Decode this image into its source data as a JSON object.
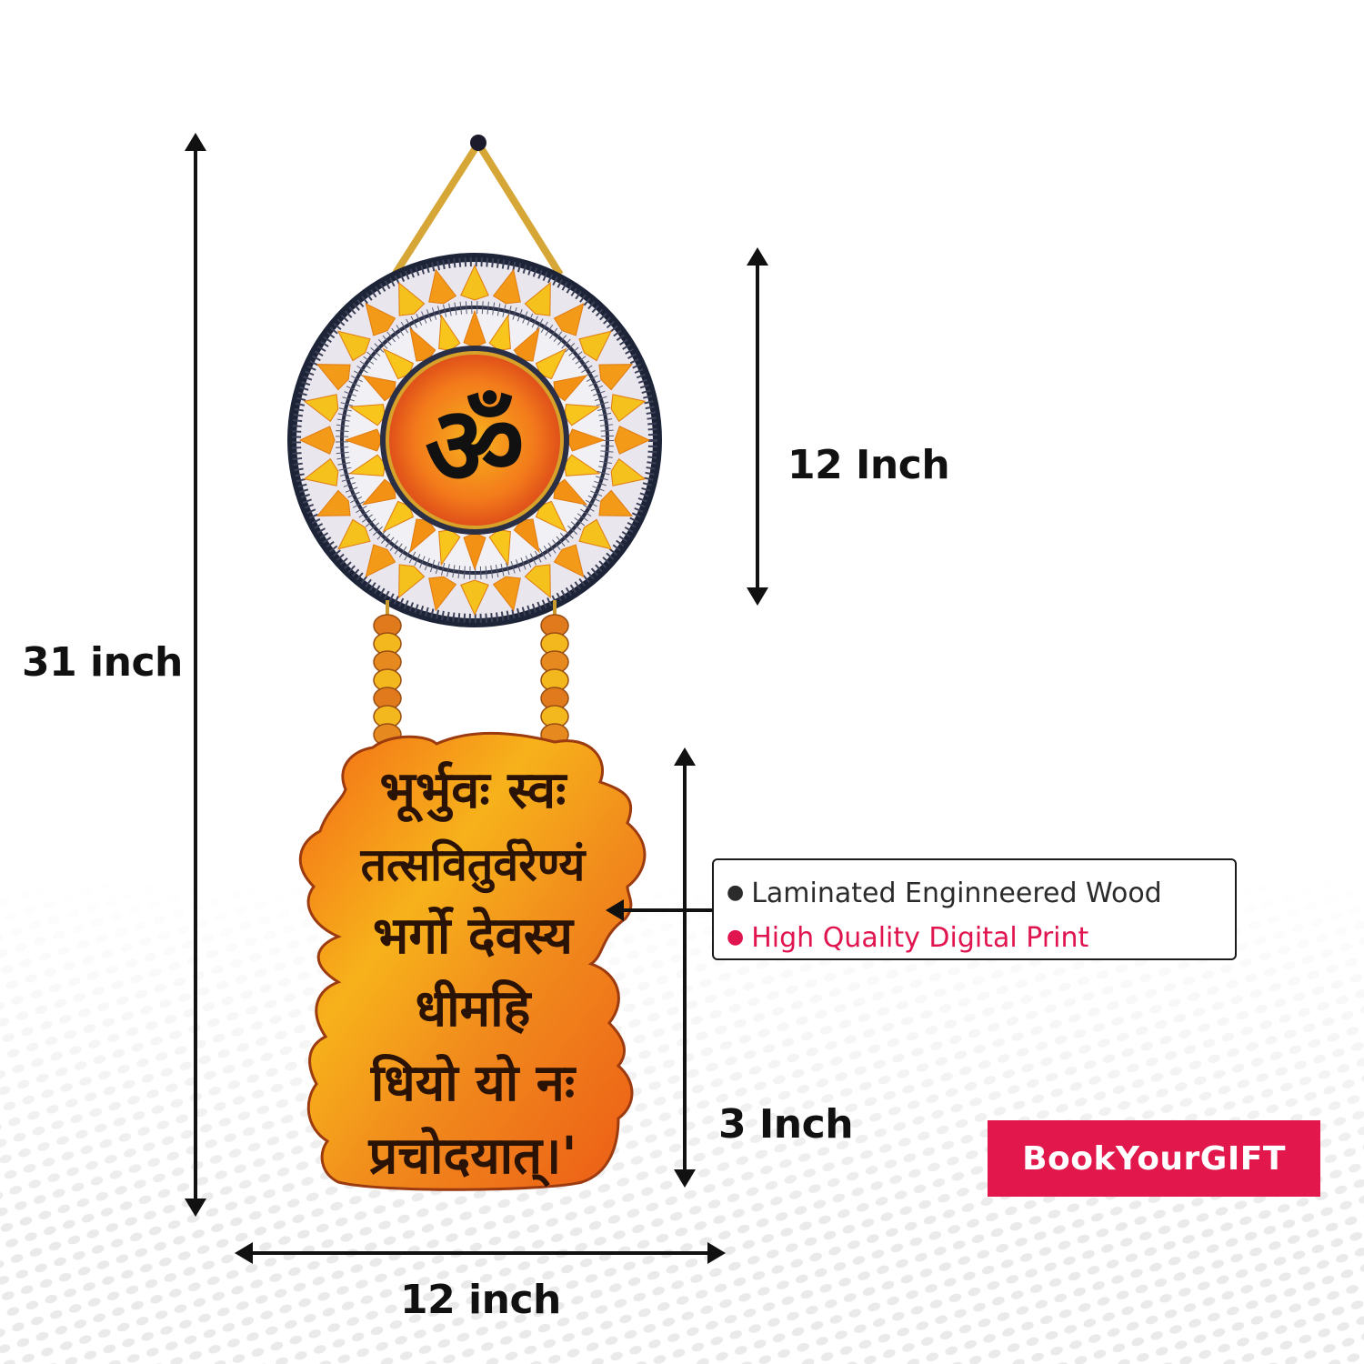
{
  "dimensions": {
    "total_height": "31 inch",
    "top_height": "12 Inch",
    "bottom_height": "3 Inch",
    "width": "12 inch"
  },
  "features": [
    "Laminated Enginneered Wood",
    "High Quality Digital Print"
  ],
  "features_colors": [
    "#2b2b2b",
    "#e0144f"
  ],
  "brand": {
    "logo_text": "BookYourGIFT",
    "color": "#e2184d"
  },
  "product": {
    "symbol": "ॐ",
    "mantra_lines": [
      "भूर्भुवः स्वः",
      "तत्सवितुर्वरेण्यं",
      "भर्गो देवस्य",
      "धीमहि",
      "धियो यो नः",
      "प्रचोदयात्।'"
    ]
  }
}
